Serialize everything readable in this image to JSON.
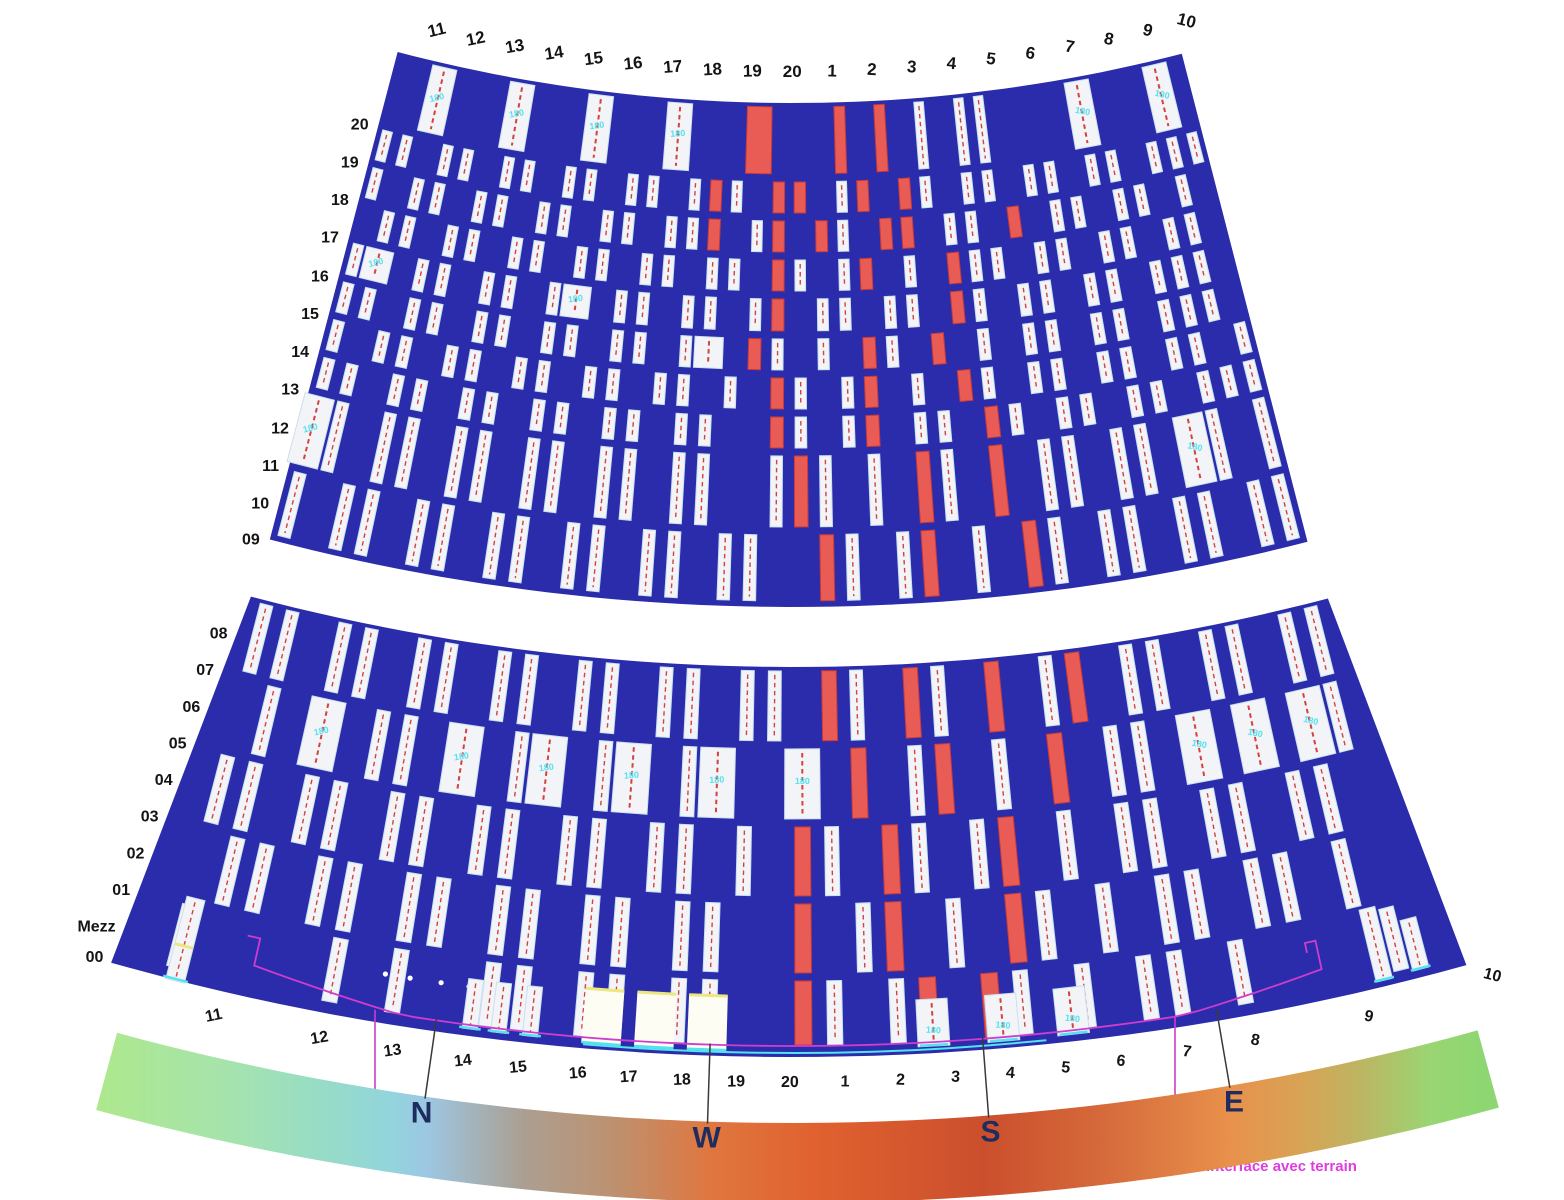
{
  "diagram": {
    "kind": "tower facade development map (unrolled fan view)",
    "panel_dim_label": "180",
    "colors": {
      "band": "#2b2cab",
      "panel": "#f3f4f8",
      "panel_edge": "#c9dff0",
      "dash": "#d5413c",
      "red": "#e95b55",
      "red_border": "#c93a38",
      "cyan": "#55e2ee",
      "yellow": "#ece77e",
      "magenta_line": "#cf3ccf",
      "magenta_text": "#e03ce0",
      "ink": "#141414",
      "compass_ink": "#1e2c5e",
      "tick": "#3a3a3a",
      "door_fill": "#fdfdf3",
      "white": "#ffffff"
    }
  },
  "top_labels": [
    "11",
    "12",
    "13",
    "14",
    "15",
    "16",
    "17",
    "18",
    "19",
    "20",
    "1",
    "2",
    "3",
    "4",
    "5",
    "6",
    "7",
    "8",
    "9",
    "10"
  ],
  "bottom_labels": [
    "11",
    "12",
    "13",
    "14",
    "15",
    "16",
    "17",
    "18",
    "19",
    "20",
    "1",
    "2",
    "3",
    "4",
    "5",
    "6",
    "7",
    "8",
    "9"
  ],
  "bottom_thetas": [
    -13.15,
    -10.72,
    -9.05,
    -7.45,
    -6.2,
    -4.85,
    -3.7,
    -2.5,
    -1.28,
    -0.07,
    1.17,
    2.42,
    3.66,
    4.9,
    6.15,
    7.4,
    8.9,
    10.46,
    13.07
  ],
  "corner_label": {
    "text": "10",
    "theta": 16.0
  },
  "upper": {
    "left_labels": [
      "20",
      "19",
      "18",
      "17",
      "16",
      "15",
      "14",
      "13",
      "12",
      "11",
      "10",
      "09"
    ],
    "panel_rows": [
      {
        "slots": "..1...1...1...1...R...r.r.w.ww....1...1."
      },
      {
        "slots": "ww.ww.ww.ww.ww.wrw.rr.wr.rw.ww.ww.ww.www"
      },
      {
        "slots": "w.ww.ww.ww.ww.wwr.wr.rw.rr.ww.r.ww.ww.w."
      },
      {
        "slots": ".ww.ww.ww.ww.ww.ww.rw.wr.w.rww.ww.ww.ww."
      },
      {
        "slots": "w1.ww.ww.w1.ww.ww.wr.ww.ww.rw.ww.ww.www."
      },
      {
        "slots": "ww.ww.ww.ww.ww.wW.rw.w.rw.r.w.ww.ww.www."
      },
      {
        "slots": "w.ww.ww.ww.ww.ww.w.rw.wr.w.rw.ww.ww.ww.w"
      },
      {
        "slots": "ww.ww.ww.ww.ww.ww..rw.wr.ww.rw.ww.ww.www"
      },
      {
        "slots": "1w.ww.ww.ww.ww.ww..wrw.w.rw.r.ww.ww.1w.w"
      },
      {
        "slots": "w.ww.ww.ww.ww.ww.ww..rw.wr.w.rw.ww.ww.ww"
      }
    ]
  },
  "lower": {
    "left_labels": [
      "08",
      "07",
      "06",
      "05",
      "04",
      "03",
      "02",
      "01",
      "Mezz",
      "00"
    ],
    "panel_rows": [
      {
        "slots": "ww.ww.ww.ww.ww.ww.ww.rw.rw.r.wr.ww.ww.ww"
      },
      {
        "slots": ".w.1.ww.1.w1.w1.w1..1.r.wr.w.r.ww.1.1.1w"
      },
      {
        "slots": "ww.ww.ww.ww.ww.ww.w.rw.rw.wr.w.ww.ww.ww."
      },
      {
        "slots": ".ww.ww.ww.ww.ww.ww..r.wr.w.rw.w.ww.ww.w."
      },
      {
        "slots": "w....w.w..ww.ww.ww..rw.wr.rw.w.ww.w....w"
      }
    ]
  },
  "compass": {
    "letters": [
      "N",
      "W",
      "S",
      "E"
    ],
    "thetas": [
      -8.2,
      -1.9,
      4.35,
      9.75
    ],
    "gradient": [
      [
        0.0,
        "#aee88d"
      ],
      [
        0.096,
        "#a5e3ae"
      ],
      [
        0.16,
        "#97dcc6"
      ],
      [
        0.21,
        "#92d5dc"
      ],
      [
        0.235,
        "#9cc8e4"
      ],
      [
        0.306,
        "#ab9f92"
      ],
      [
        0.37,
        "#bc9271"
      ],
      [
        0.444,
        "#e0763f"
      ],
      [
        0.519,
        "#e0612f"
      ],
      [
        0.64,
        "#cb4f2d"
      ],
      [
        0.725,
        "#d5693a"
      ],
      [
        0.82,
        "#e8914c"
      ],
      [
        0.87,
        "#d8a355"
      ],
      [
        0.913,
        "#bdb562"
      ],
      [
        0.964,
        "#9ad573"
      ],
      [
        1.0,
        "#8ed671"
      ]
    ]
  },
  "terrain": {
    "label": "interface avec terrain",
    "leader_x": [
      375,
      1175
    ]
  },
  "features": {
    "doors_u": [
      7.07,
      7.9,
      8.73
    ],
    "dots_u": [
      3.55,
      3.95,
      4.45,
      4.9
    ],
    "bottom_panels_u": [
      5.0,
      5.45,
      5.95
    ],
    "bottom_labeled_u": [
      12.3,
      13.4,
      14.5
    ],
    "corner_panels_u": [
      19.45,
      20.05
    ],
    "left_panel_u": 0.32
  }
}
